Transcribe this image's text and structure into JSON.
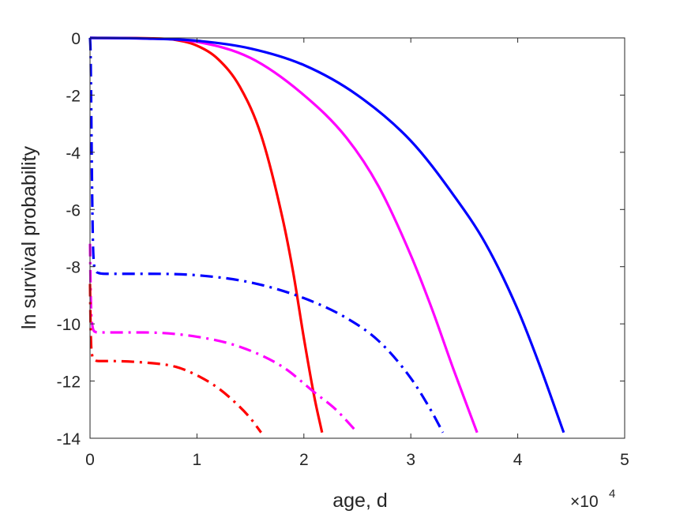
{
  "chart_data": {
    "type": "line",
    "title": "",
    "xlabel": "age, d",
    "ylabel": "ln survival probability",
    "x_multiplier_label": {
      "base": "×10",
      "exponent": "4"
    },
    "xlim": [
      0,
      50000
    ],
    "ylim": [
      -14,
      0
    ],
    "xticks": [
      0,
      10000,
      20000,
      30000,
      40000,
      50000
    ],
    "xtick_labels": [
      "0",
      "1",
      "2",
      "3",
      "4",
      "5"
    ],
    "yticks": [
      -14,
      -12,
      -10,
      -8,
      -6,
      -4,
      -2,
      0
    ],
    "ytick_labels": [
      "-14",
      "-12",
      "-10",
      "-8",
      "-6",
      "-4",
      "-2",
      "0"
    ],
    "grid": false,
    "box": true,
    "series": [
      {
        "color": "#ff0000",
        "linestyle": "solid",
        "x": [
          0,
          5000,
          8000,
          10000,
          12000,
          14000,
          16000,
          18000,
          19000,
          20000,
          21000,
          21700
        ],
        "y": [
          0,
          -0.01,
          -0.07,
          -0.27,
          -0.75,
          -1.7,
          -3.4,
          -6.3,
          -8.2,
          -10.5,
          -12.6,
          -13.8
        ]
      },
      {
        "color": "#ff00ff",
        "linestyle": "solid",
        "x": [
          0,
          5000,
          10000,
          15000,
          20000,
          24000,
          27000,
          30000,
          32000,
          34000,
          36200
        ],
        "y": [
          0,
          -0.02,
          -0.14,
          -0.7,
          -2.0,
          -3.5,
          -5.2,
          -7.6,
          -9.5,
          -11.6,
          -13.8
        ]
      },
      {
        "color": "#0000ff",
        "linestyle": "solid",
        "x": [
          0,
          5000,
          10000,
          15000,
          20000,
          25000,
          30000,
          34000,
          37000,
          40000,
          42000,
          44300
        ],
        "y": [
          0,
          -0.02,
          -0.1,
          -0.37,
          -0.95,
          -2.0,
          -3.6,
          -5.5,
          -7.2,
          -9.5,
          -11.4,
          -13.8
        ]
      },
      {
        "color": "#0000ff",
        "linestyle": "dashdot",
        "x": [
          0,
          50,
          100,
          200,
          300,
          500,
          800,
          1500,
          5000,
          10000,
          15000,
          20000,
          24000,
          27000,
          30000,
          32000,
          33000
        ],
        "y": [
          0,
          -0.5,
          -2.0,
          -5.5,
          -7.5,
          -8.1,
          -8.22,
          -8.25,
          -8.25,
          -8.3,
          -8.55,
          -9.1,
          -9.8,
          -10.6,
          -11.9,
          -13.1,
          -13.8
        ]
      },
      {
        "color": "#ff00ff",
        "linestyle": "dashdot",
        "x": [
          0,
          50,
          100,
          200,
          300,
          500,
          800,
          1500,
          5000,
          10000,
          14000,
          18000,
          21000,
          23000,
          25000
        ],
        "y": [
          -7.2,
          -8.6,
          -9.5,
          -10.0,
          -10.2,
          -10.28,
          -10.3,
          -10.3,
          -10.3,
          -10.45,
          -10.8,
          -11.5,
          -12.4,
          -13.0,
          -13.8
        ]
      },
      {
        "color": "#ff0000",
        "linestyle": "dashdot",
        "x": [
          0,
          50,
          100,
          200,
          300,
          500,
          800,
          1500,
          5000,
          8000,
          10000,
          12000,
          14000,
          15000,
          16000
        ],
        "y": [
          -8.6,
          -10.0,
          -10.7,
          -11.1,
          -11.22,
          -11.28,
          -11.3,
          -11.3,
          -11.35,
          -11.5,
          -11.8,
          -12.25,
          -12.9,
          -13.3,
          -13.8
        ]
      }
    ]
  }
}
